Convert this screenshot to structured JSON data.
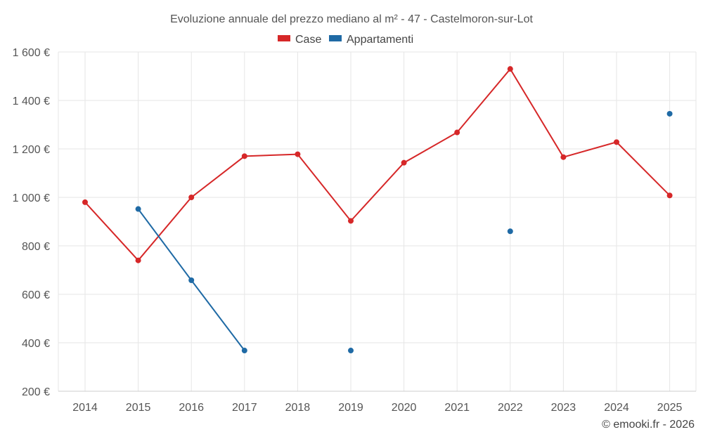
{
  "chart_data": {
    "type": "line",
    "title": "Evoluzione annuale del prezzo mediano al m² - 47 - Castelmoron-sur-Lot",
    "categories": [
      "2014",
      "2015",
      "2016",
      "2017",
      "2018",
      "2019",
      "2020",
      "2021",
      "2022",
      "2023",
      "2024",
      "2025"
    ],
    "ylim": [
      200,
      1600
    ],
    "yticks": [
      200,
      400,
      600,
      800,
      1000,
      1200,
      1400,
      1600
    ],
    "ytick_labels": [
      "200 €",
      "400 €",
      "600 €",
      "800 €",
      "1 000 €",
      "1 200 €",
      "1 400 €",
      "1 600 €"
    ],
    "grid": true,
    "legend_position": "top-center",
    "series": [
      {
        "name": "Case",
        "color": "#d62728",
        "values": [
          980,
          740,
          1000,
          1170,
          1178,
          903,
          1143,
          1268,
          1530,
          1166,
          1228,
          1008
        ]
      },
      {
        "name": "Appartamenti",
        "color": "#1f6aa5",
        "values": [
          null,
          952,
          658,
          368,
          null,
          368,
          null,
          null,
          860,
          null,
          null,
          1345
        ]
      }
    ]
  },
  "credit": "© emooki.fr - 2026"
}
